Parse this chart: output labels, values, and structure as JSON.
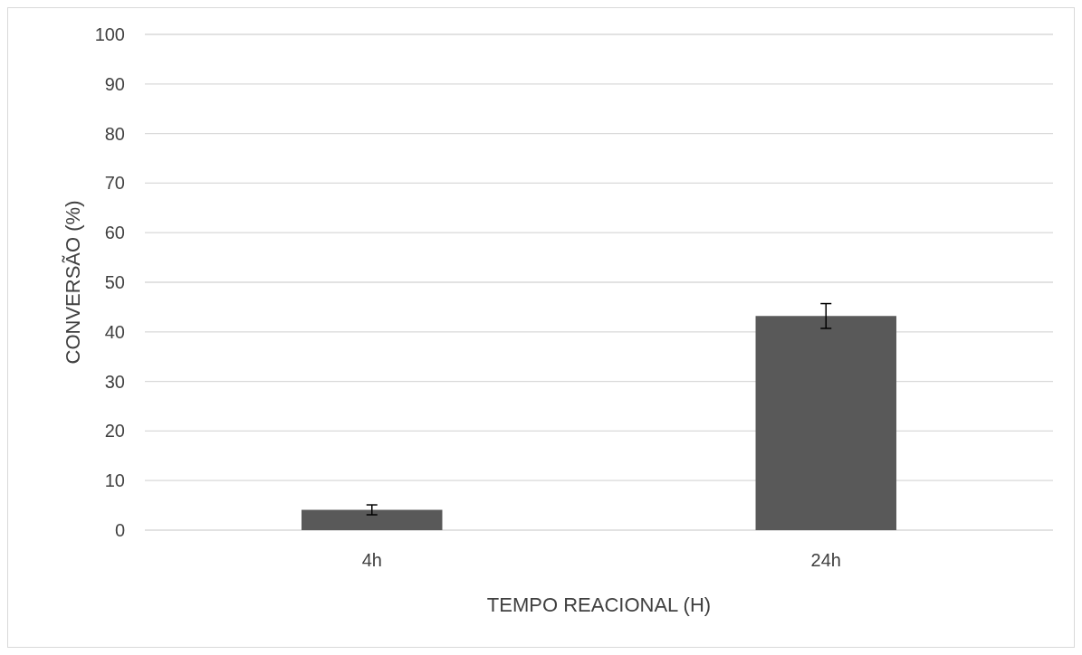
{
  "chart_data": {
    "type": "bar",
    "xlabel": "TEMPO REACIONAL (H)",
    "ylabel": "CONVERSÃO (%)",
    "categories": [
      "4h",
      "24h"
    ],
    "values": [
      4.1,
      43.2
    ],
    "errors": [
      1,
      2.5
    ],
    "color": "#595959",
    "ylim": [
      0,
      100
    ],
    "yticks": [
      0,
      10,
      20,
      30,
      40,
      50,
      60,
      70,
      80,
      90,
      100
    ],
    "grid": "y"
  }
}
